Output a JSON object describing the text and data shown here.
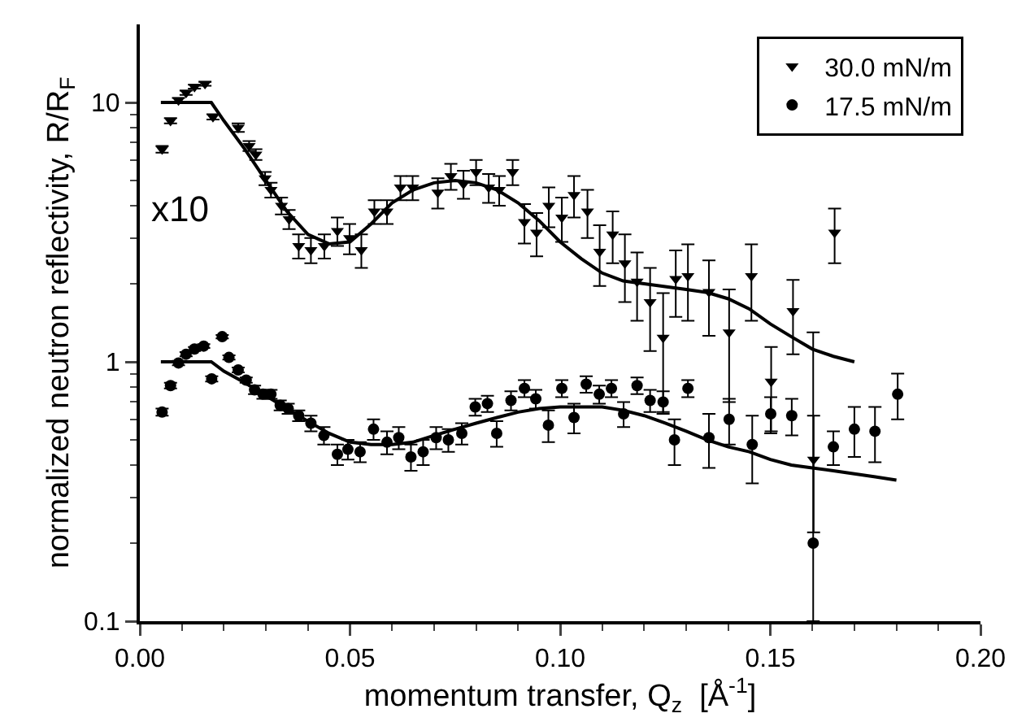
{
  "chart_data": {
    "type": "scatter",
    "xlabel": "momentum transfer, Q$_{z}$  [Å$^{-1}$]",
    "ylabel": "normalized neutron reflectivity, R/R$_{F}$",
    "log": "y",
    "grid": false,
    "legend": "top right",
    "xlim": [
      0,
      0.2
    ],
    "ylim": [
      0.1,
      20
    ],
    "xticks": [
      {
        "value": 0,
        "label": "0.00"
      },
      {
        "value": 0.01,
        "label": null
      },
      {
        "value": 0.02,
        "label": null
      },
      {
        "value": 0.03,
        "label": null
      },
      {
        "value": 0.04,
        "label": null
      },
      {
        "value": 0.05,
        "label": "0.05"
      },
      {
        "value": 0.06,
        "label": null
      },
      {
        "value": 0.07,
        "label": null
      },
      {
        "value": 0.08,
        "label": null
      },
      {
        "value": 0.09,
        "label": null
      },
      {
        "value": 0.1,
        "label": "0.10"
      },
      {
        "value": 0.11,
        "label": null
      },
      {
        "value": 0.12,
        "label": null
      },
      {
        "value": 0.13,
        "label": null
      },
      {
        "value": 0.14,
        "label": null
      },
      {
        "value": 0.15,
        "label": "0.15"
      },
      {
        "value": 0.16,
        "label": null
      },
      {
        "value": 0.17,
        "label": null
      },
      {
        "value": 0.18,
        "label": null
      },
      {
        "value": 0.19,
        "label": null
      },
      {
        "value": 0.2,
        "label": "0.20"
      }
    ],
    "yticks": [
      0.1,
      {
        "value": 0.2,
        "label": null
      },
      {
        "value": 0.3,
        "label": null
      },
      {
        "value": 0.4,
        "label": null
      },
      {
        "value": 0.5,
        "label": null
      },
      {
        "value": 0.6,
        "label": null
      },
      {
        "value": 0.7,
        "label": null
      },
      {
        "value": 0.8,
        "label": null
      },
      {
        "value": 0.9,
        "label": null
      },
      1,
      {
        "value": 2,
        "label": null
      },
      {
        "value": 3,
        "label": null
      },
      {
        "value": 4,
        "label": null
      },
      {
        "value": 5,
        "label": null
      },
      {
        "value": 6,
        "label": null
      },
      {
        "value": 7,
        "label": null
      },
      {
        "value": 8,
        "label": null
      },
      {
        "value": 9,
        "label": null
      },
      10
    ],
    "annotations": [
      "x10"
    ],
    "series": [
      {
        "name": "30.0 mN/m",
        "color": "#000000",
        "marker": "triangle",
        "x": [
          0.0053,
          0.0073,
          0.0092,
          0.011,
          0.013,
          0.0155,
          0.0174,
          0.0234,
          0.026,
          0.0276,
          0.0298,
          0.0312,
          0.0337,
          0.0355,
          0.0378,
          0.0407,
          0.0439,
          0.047,
          0.0499,
          0.0527,
          0.0558,
          0.0588,
          0.062,
          0.0649,
          0.0709,
          0.074,
          0.077,
          0.08,
          0.083,
          0.0855,
          0.0887,
          0.0915,
          0.0944,
          0.0973,
          0.1004,
          0.1033,
          0.1065,
          0.1094,
          0.1125,
          0.1154,
          0.1183,
          0.1214,
          0.1245,
          0.1275,
          0.1304,
          0.1354,
          0.1402,
          0.1455,
          0.1502,
          0.1554,
          0.1603,
          0.1653
        ],
        "values": [
          6.6,
          8.5,
          10.2,
          10.9,
          11.5,
          11.8,
          8.8,
          8,
          6.8,
          6.3,
          5.1,
          4.6,
          4,
          3.55,
          2.8,
          2.7,
          2.8,
          3.2,
          3,
          2.7,
          3.8,
          3.8,
          4.7,
          4.7,
          4.5,
          5.2,
          4.85,
          5.4,
          4.7,
          4.6,
          5.4,
          3.46,
          3.15,
          4,
          3.6,
          4.4,
          3.8,
          2.66,
          3.1,
          2.4,
          2.04,
          1.7,
          1.24,
          2.09,
          2.14,
          1.86,
          1.3,
          2.14,
          0.84,
          1.57,
          0.42,
          3.15
        ],
        "errors": [
          0.2,
          0.2,
          0.2,
          0.2,
          0.2,
          0.2,
          0.2,
          0.3,
          0.3,
          0.3,
          0.3,
          0.3,
          0.3,
          0.3,
          0.3,
          0.3,
          0.3,
          0.4,
          0.4,
          0.4,
          0.4,
          0.4,
          0.5,
          0.5,
          0.6,
          0.6,
          0.6,
          0.6,
          0.6,
          0.6,
          0.6,
          0.6,
          0.6,
          0.7,
          0.7,
          0.8,
          0.8,
          0.7,
          0.7,
          0.7,
          0.6,
          0.6,
          0.6,
          0.6,
          0.7,
          0.6,
          0.6,
          0.7,
          0.3,
          0.5,
          0.2,
          0.75
        ]
      },
      {
        "name": "17.5 mN/m",
        "color": "#000000",
        "marker": "circle",
        "x": [
          0.0053,
          0.0073,
          0.0092,
          0.011,
          0.013,
          0.0152,
          0.0171,
          0.0196,
          0.0212,
          0.0234,
          0.0253,
          0.0273,
          0.0293,
          0.0312,
          0.0334,
          0.0353,
          0.0378,
          0.0407,
          0.0438,
          0.047,
          0.0495,
          0.0524,
          0.0556,
          0.0588,
          0.0616,
          0.0645,
          0.0674,
          0.0705,
          0.0734,
          0.0766,
          0.0798,
          0.0827,
          0.0849,
          0.0883,
          0.0915,
          0.0942,
          0.0972,
          0.1004,
          0.1033,
          0.1062,
          0.1093,
          0.1122,
          0.1151,
          0.1183,
          0.1214,
          0.1245,
          0.1272,
          0.1304,
          0.1354,
          0.1402,
          0.1457,
          0.1501,
          0.1551,
          0.1602,
          0.165,
          0.17,
          0.1749,
          0.1803
        ],
        "values": [
          0.64,
          0.81,
          0.99,
          1.07,
          1.12,
          1.15,
          0.86,
          1.25,
          1.04,
          0.93,
          0.85,
          0.78,
          0.75,
          0.75,
          0.68,
          0.66,
          0.62,
          0.58,
          0.52,
          0.44,
          0.46,
          0.45,
          0.55,
          0.49,
          0.51,
          0.43,
          0.45,
          0.51,
          0.5,
          0.53,
          0.67,
          0.69,
          0.53,
          0.71,
          0.79,
          0.72,
          0.57,
          0.79,
          0.61,
          0.82,
          0.75,
          0.79,
          0.63,
          0.81,
          0.71,
          0.7,
          0.5,
          0.79,
          0.51,
          0.6,
          0.48,
          0.63,
          0.62,
          0.2,
          0.47,
          0.55,
          0.54,
          0.75
        ],
        "errors": [
          0.02,
          0.02,
          0.02,
          0.02,
          0.02,
          0.02,
          0.02,
          0.02,
          0.02,
          0.02,
          0.02,
          0.03,
          0.03,
          0.03,
          0.03,
          0.03,
          0.03,
          0.04,
          0.04,
          0.04,
          0.04,
          0.04,
          0.05,
          0.05,
          0.05,
          0.05,
          0.05,
          0.05,
          0.05,
          0.05,
          0.05,
          0.05,
          0.06,
          0.06,
          0.06,
          0.06,
          0.08,
          0.06,
          0.08,
          0.06,
          0.06,
          0.06,
          0.07,
          0.06,
          0.07,
          0.07,
          0.1,
          0.06,
          0.12,
          0.12,
          0.14,
          0.1,
          0.1,
          [
            0.1,
            1.3
          ],
          0.07,
          0.12,
          0.13,
          0.15
        ]
      },
      {
        "type": "line",
        "color": "#000000",
        "x": [
          0.005,
          0.017,
          0.02,
          0.025,
          0.03,
          0.035,
          0.04,
          0.045,
          0.05,
          0.055,
          0.06,
          0.065,
          0.07,
          0.075,
          0.08,
          0.085,
          0.09,
          0.095,
          0.1,
          0.105,
          0.11,
          0.115,
          0.12,
          0.125,
          0.13,
          0.135,
          0.14,
          0.145,
          0.15,
          0.155,
          0.16,
          0.165,
          0.17
        ],
        "values": [
          10,
          10,
          8.5,
          6.6,
          5,
          3.8,
          3.1,
          2.85,
          2.9,
          3.4,
          4.1,
          4.6,
          4.9,
          5,
          4.9,
          4.6,
          4.1,
          3.5,
          2.9,
          2.5,
          2.2,
          2.05,
          2,
          1.95,
          1.9,
          1.85,
          1.75,
          1.6,
          1.4,
          1.25,
          1.12,
          1.05,
          1
        ]
      },
      {
        "type": "line",
        "color": "#000000",
        "x": [
          0.005,
          0.017,
          0.02,
          0.025,
          0.03,
          0.035,
          0.04,
          0.045,
          0.05,
          0.055,
          0.06,
          0.065,
          0.07,
          0.075,
          0.08,
          0.085,
          0.09,
          0.095,
          0.1,
          0.105,
          0.11,
          0.115,
          0.12,
          0.125,
          0.13,
          0.135,
          0.14,
          0.145,
          0.15,
          0.155,
          0.16,
          0.165,
          0.17,
          0.175,
          0.18
        ],
        "values": [
          1,
          1,
          0.92,
          0.83,
          0.74,
          0.66,
          0.59,
          0.53,
          0.49,
          0.48,
          0.48,
          0.49,
          0.52,
          0.55,
          0.58,
          0.61,
          0.64,
          0.66,
          0.67,
          0.67,
          0.67,
          0.65,
          0.62,
          0.58,
          0.54,
          0.5,
          0.47,
          0.45,
          0.42,
          0.4,
          0.39,
          0.38,
          0.37,
          0.36,
          0.35
        ]
      }
    ]
  }
}
